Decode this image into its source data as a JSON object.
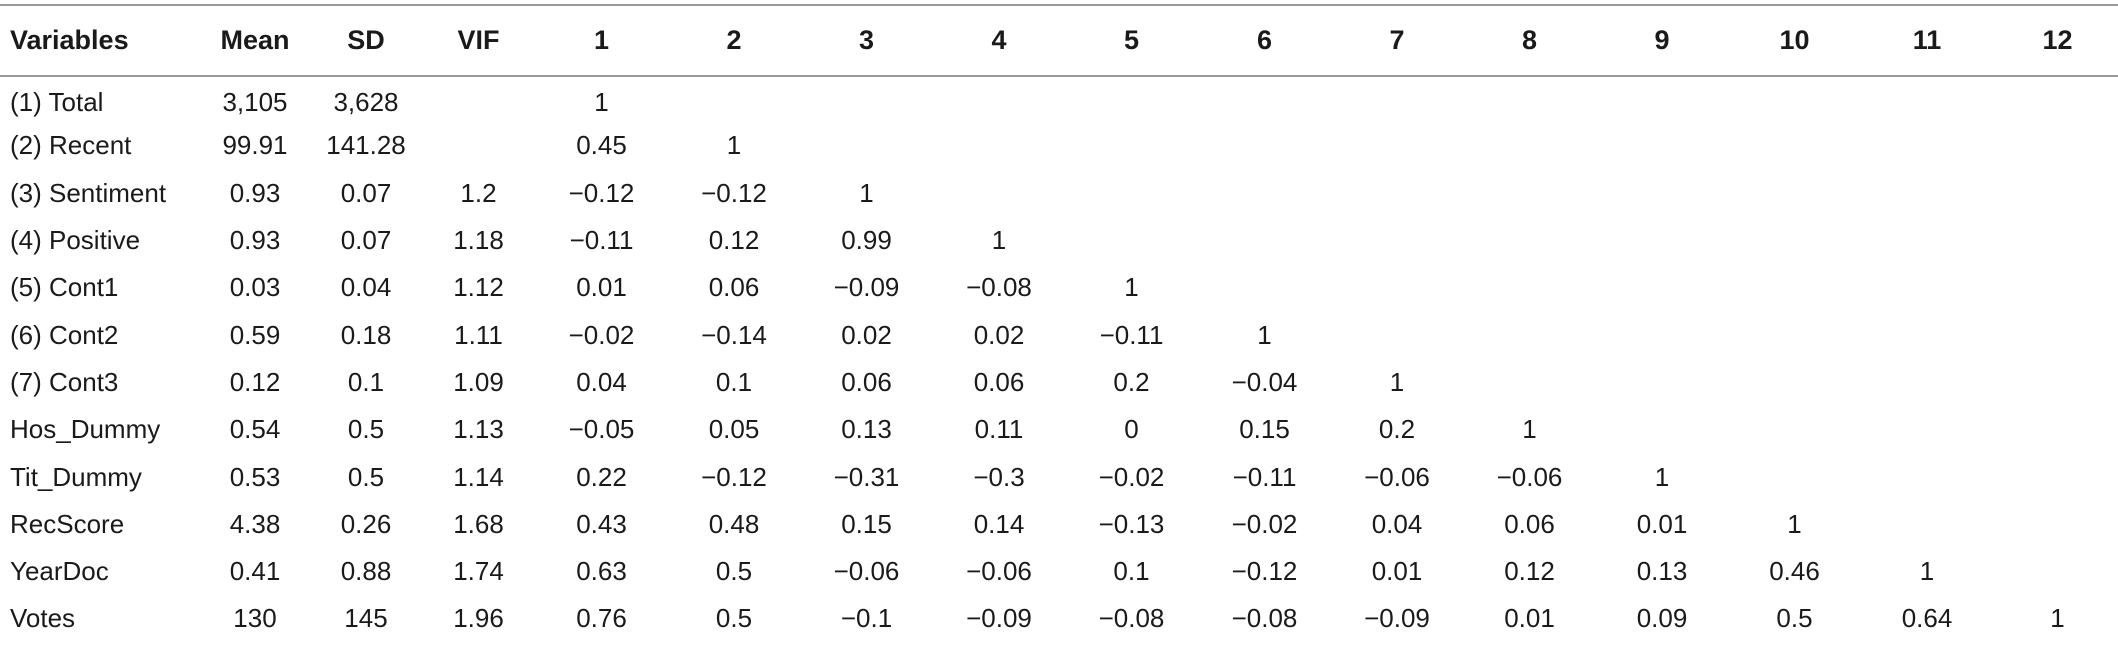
{
  "table": {
    "headers": [
      "Variables",
      "Mean",
      "SD",
      "VIF",
      "1",
      "2",
      "3",
      "4",
      "5",
      "6",
      "7",
      "8",
      "9",
      "10",
      "11",
      "12"
    ],
    "rows": [
      [
        "(1) Total",
        "3,105",
        "3,628",
        "",
        "1",
        "",
        "",
        "",
        "",
        "",
        "",
        "",
        "",
        "",
        "",
        ""
      ],
      [
        "(2) Recent",
        "99.91",
        "141.28",
        "",
        "0.45",
        "1",
        "",
        "",
        "",
        "",
        "",
        "",
        "",
        "",
        "",
        ""
      ],
      [
        "(3) Sentiment",
        "0.93",
        "0.07",
        "1.2",
        "−0.12",
        "−0.12",
        "1",
        "",
        "",
        "",
        "",
        "",
        "",
        "",
        "",
        ""
      ],
      [
        "(4) Positive",
        "0.93",
        "0.07",
        "1.18",
        "−0.11",
        "0.12",
        "0.99",
        "1",
        "",
        "",
        "",
        "",
        "",
        "",
        "",
        ""
      ],
      [
        "(5) Cont1",
        "0.03",
        "0.04",
        "1.12",
        "0.01",
        "0.06",
        "−0.09",
        "−0.08",
        "1",
        "",
        "",
        "",
        "",
        "",
        "",
        ""
      ],
      [
        "(6) Cont2",
        "0.59",
        "0.18",
        "1.11",
        "−0.02",
        "−0.14",
        "0.02",
        "0.02",
        "−0.11",
        "1",
        "",
        "",
        "",
        "",
        "",
        ""
      ],
      [
        "(7) Cont3",
        "0.12",
        "0.1",
        "1.09",
        "0.04",
        "0.1",
        "0.06",
        "0.06",
        "0.2",
        "−0.04",
        "1",
        "",
        "",
        "",
        "",
        ""
      ],
      [
        "Hos_Dummy",
        "0.54",
        "0.5",
        "1.13",
        "−0.05",
        "0.05",
        "0.13",
        "0.11",
        "0",
        "0.15",
        "0.2",
        "1",
        "",
        "",
        "",
        ""
      ],
      [
        "Tit_Dummy",
        "0.53",
        "0.5",
        "1.14",
        "0.22",
        "−0.12",
        "−0.31",
        "−0.3",
        "−0.02",
        "−0.11",
        "−0.06",
        "−0.06",
        "1",
        "",
        "",
        ""
      ],
      [
        "RecScore",
        "4.38",
        "0.26",
        "1.68",
        "0.43",
        "0.48",
        "0.15",
        "0.14",
        "−0.13",
        "−0.02",
        "0.04",
        "0.06",
        "0.01",
        "1",
        "",
        ""
      ],
      [
        "YearDoc",
        "0.41",
        "0.88",
        "1.74",
        "0.63",
        "0.5",
        "−0.06",
        "−0.06",
        "0.1",
        "−0.12",
        "0.01",
        "0.12",
        "0.13",
        "0.46",
        "1",
        ""
      ],
      [
        "Votes",
        "130",
        "145",
        "1.96",
        "0.76",
        "0.5",
        "−0.1",
        "−0.09",
        "−0.08",
        "−0.08",
        "−0.09",
        "0.01",
        "0.09",
        "0.5",
        "0.64",
        "1"
      ]
    ]
  }
}
